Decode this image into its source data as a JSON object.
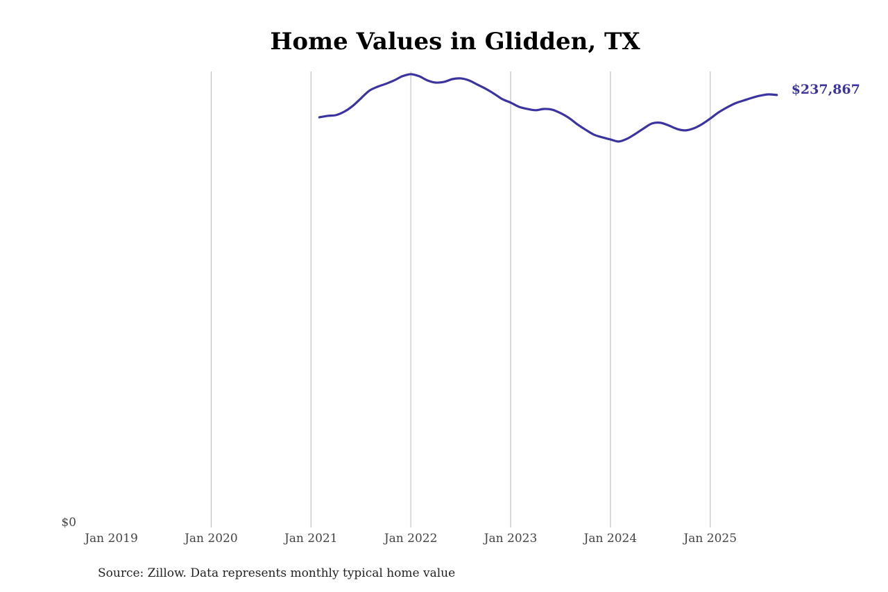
{
  "chart_data": {
    "type": "line",
    "title": "Home Values in Glidden, TX",
    "xlabel": "",
    "ylabel": "",
    "x_ticks": [
      "Jan 2019",
      "Jan 2020",
      "Jan 2021",
      "Jan 2022",
      "Jan 2023",
      "Jan 2024",
      "Jan 2025"
    ],
    "y_ticks": [
      "$0"
    ],
    "ylim": [
      0,
      250800
    ],
    "xlim": [
      "2019-01",
      "2025-09"
    ],
    "grid": "vertical",
    "line_color": "#3b34a0",
    "start_month": "2021-02",
    "end_label": "$237,867",
    "series": [
      {
        "name": "Typical home value",
        "values": [
          225600,
          226400,
          226800,
          228700,
          231800,
          236000,
          240200,
          242400,
          244000,
          245900,
          248200,
          249300,
          248200,
          245900,
          244700,
          245100,
          246600,
          247000,
          245900,
          243600,
          241300,
          238600,
          235600,
          233700,
          231400,
          230200,
          229500,
          230200,
          229800,
          227900,
          225300,
          221800,
          218800,
          216100,
          214600,
          213400,
          212300,
          213800,
          216500,
          219500,
          222200,
          222600,
          221100,
          219200,
          218400,
          219500,
          221800,
          224900,
          228300,
          231000,
          233300,
          234800,
          236300,
          237500,
          238200,
          237867
        ]
      }
    ],
    "source": "Source: Zillow. Data represents monthly typical home value"
  }
}
